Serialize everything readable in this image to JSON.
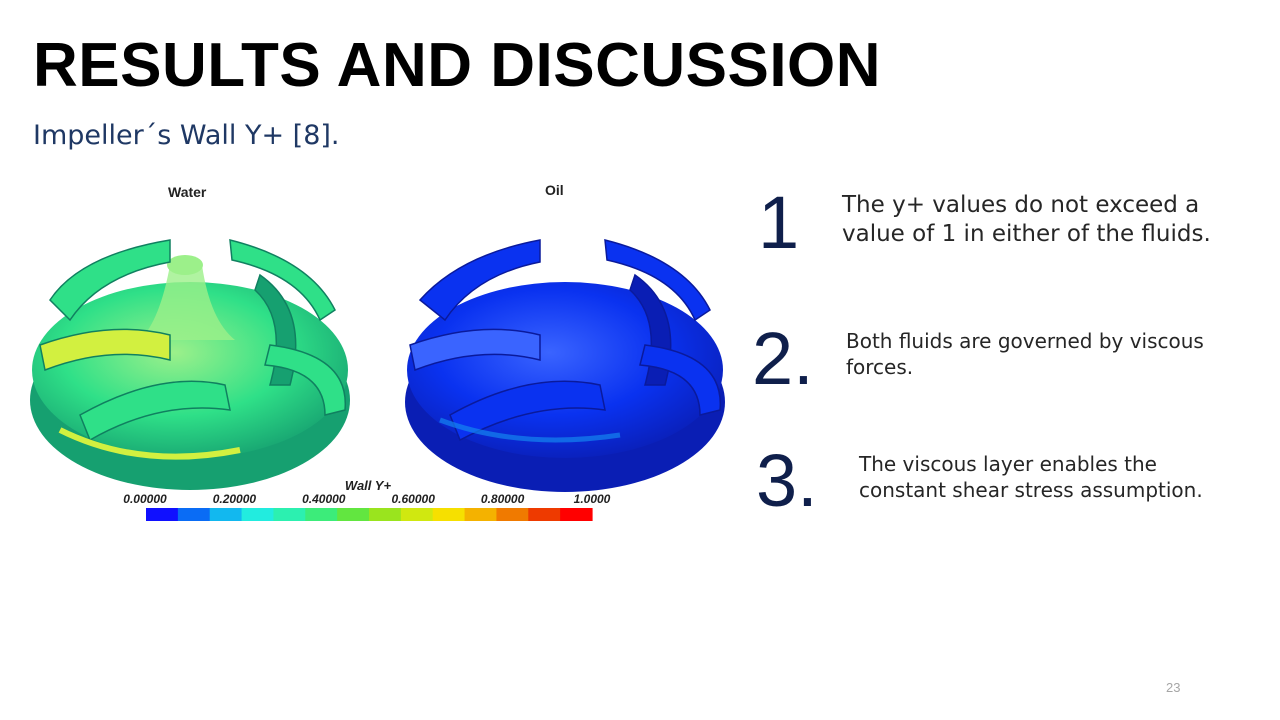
{
  "slide": {
    "title": "RESULTS AND DISCUSSION",
    "subtitle": "Impeller´s  Wall Y+ [8].",
    "page_number": "23"
  },
  "figure": {
    "left_label": "Water",
    "right_label": "Oil",
    "colorbar": {
      "title": "Wall Y+",
      "ticks": [
        "0.00000",
        "0.20000",
        "0.40000",
        "0.60000",
        "0.80000",
        "1.0000"
      ],
      "colors": [
        "#1010ff",
        "#0a6cf5",
        "#12b8ef",
        "#22ecdf",
        "#2cf0b0",
        "#3cec7a",
        "#62e640",
        "#9ae41e",
        "#d0e810",
        "#f6e000",
        "#f4b200",
        "#f07a00",
        "#ee3a00",
        "#ff0000"
      ]
    },
    "water_colors": {
      "base": "#2fe088",
      "light": "#9cf08a",
      "shade": "#16a070",
      "accent": "#d2f040"
    },
    "oil_colors": {
      "base": "#0a32f0",
      "light": "#3a64ff",
      "shade": "#0a1eb4",
      "accent": "#1484f0"
    }
  },
  "points": [
    {
      "number": "1",
      "text_lines": [
        "The y+ values do not exceed a",
        "value of 1 in either of the fluids."
      ]
    },
    {
      "number": "2.",
      "text_lines": [
        "Both fluids are governed by viscous",
        "forces."
      ]
    },
    {
      "number": "3.",
      "text_lines": [
        "The viscous layer enables the",
        "constant shear stress assumption."
      ]
    }
  ]
}
